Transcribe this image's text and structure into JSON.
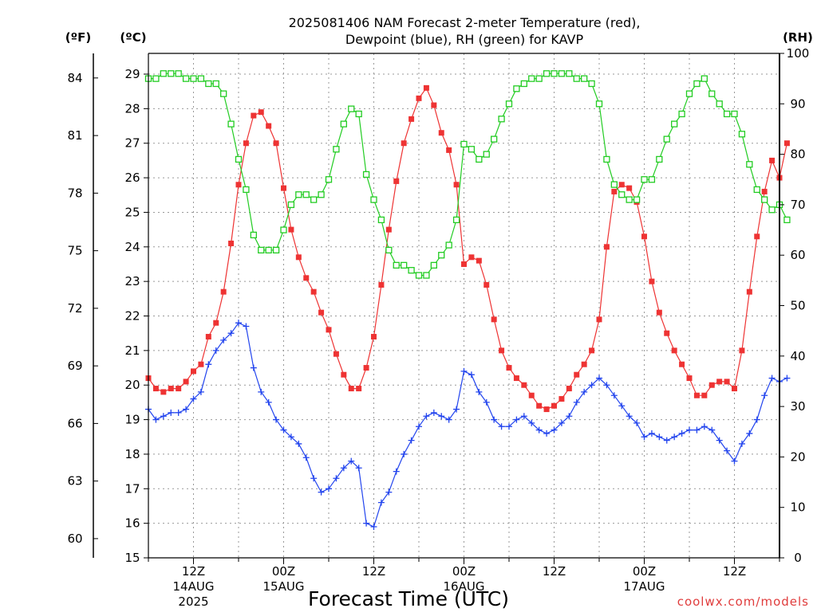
{
  "chart_data": {
    "type": "line",
    "title_line1": "2025081406 NAM Forecast 2-meter Temperature (red),",
    "title_line2": "Dewpoint (blue), RH (green) for KAVP",
    "xlabel": "Forecast Time (UTC)",
    "credit": "coolwx.com/models",
    "y_left_unit_f": "(ºF)",
    "y_left_unit_c": "(ºC)",
    "y_right_unit": "(RH)",
    "ylim_c": [
      15,
      29.6
    ],
    "ylim_rh": [
      0,
      100
    ],
    "xlim_hours": [
      6,
      90
    ],
    "grid": true,
    "f_ticks": [
      "60",
      "63",
      "66",
      "69",
      "72",
      "75",
      "78",
      "81",
      "84"
    ],
    "c_ticks": [
      "15",
      "16",
      "17",
      "18",
      "19",
      "20",
      "21",
      "22",
      "23",
      "24",
      "25",
      "26",
      "27",
      "28",
      "29"
    ],
    "rh_ticks": [
      "0",
      "10",
      "20",
      "30",
      "40",
      "50",
      "60",
      "70",
      "80",
      "90",
      "100"
    ],
    "x_ticks": [
      {
        "hour": 12,
        "label": "12Z",
        "date": "14AUG",
        "year": "2025"
      },
      {
        "hour": 24,
        "label": "00Z",
        "date": "15AUG",
        "year": ""
      },
      {
        "hour": 36,
        "label": "12Z",
        "date": "",
        "year": ""
      },
      {
        "hour": 48,
        "label": "00Z",
        "date": "16AUG",
        "year": ""
      },
      {
        "hour": 60,
        "label": "12Z",
        "date": "",
        "year": ""
      },
      {
        "hour": 72,
        "label": "00Z",
        "date": "17AUG",
        "year": ""
      },
      {
        "hour": 84,
        "label": "12Z",
        "date": "",
        "year": ""
      }
    ],
    "hours_start": 6,
    "hours_step": 1,
    "series": [
      {
        "name": "Temperature",
        "axis": "c",
        "color": "#ee3333",
        "marker": "filled-square",
        "values": [
          20.2,
          19.9,
          19.8,
          19.9,
          19.9,
          20.1,
          20.4,
          20.6,
          21.4,
          21.8,
          22.7,
          24.1,
          25.8,
          27.0,
          27.8,
          27.9,
          27.5,
          27.0,
          25.7,
          24.5,
          23.7,
          23.1,
          22.7,
          22.1,
          21.6,
          20.9,
          20.3,
          19.9,
          19.9,
          20.5,
          21.4,
          22.9,
          24.5,
          25.9,
          27.0,
          27.7,
          28.3,
          28.6,
          28.1,
          27.3,
          26.8,
          25.8,
          23.5,
          23.7,
          23.6,
          22.9,
          21.9,
          21.0,
          20.5,
          20.2,
          20.0,
          19.7,
          19.4,
          19.3,
          19.4,
          19.6,
          19.9,
          20.3,
          20.6,
          21.0,
          21.9,
          24.0,
          25.6,
          25.8,
          25.7,
          25.3,
          24.3,
          23.0,
          22.1,
          21.5,
          21.0,
          20.6,
          20.2,
          19.7,
          19.7,
          20.0,
          20.1,
          20.1,
          19.9,
          21.0,
          22.7,
          24.3,
          25.6,
          26.5,
          26.0,
          27.0
        ]
      },
      {
        "name": "Dewpoint",
        "axis": "c",
        "color": "#2244ee",
        "marker": "plus",
        "values": [
          19.3,
          19.0,
          19.1,
          19.2,
          19.2,
          19.3,
          19.6,
          19.8,
          20.6,
          21.0,
          21.3,
          21.5,
          21.8,
          21.7,
          20.5,
          19.8,
          19.5,
          19.0,
          18.7,
          18.5,
          18.3,
          17.9,
          17.3,
          16.9,
          17.0,
          17.3,
          17.6,
          17.8,
          17.6,
          16.0,
          15.9,
          16.6,
          16.9,
          17.5,
          18.0,
          18.4,
          18.8,
          19.1,
          19.2,
          19.1,
          19.0,
          19.3,
          20.4,
          20.3,
          19.8,
          19.5,
          19.0,
          18.8,
          18.8,
          19.0,
          19.1,
          18.9,
          18.7,
          18.6,
          18.7,
          18.9,
          19.1,
          19.5,
          19.8,
          20.0,
          20.2,
          20.0,
          19.7,
          19.4,
          19.1,
          18.9,
          18.5,
          18.6,
          18.5,
          18.4,
          18.5,
          18.6,
          18.7,
          18.7,
          18.8,
          18.7,
          18.4,
          18.1,
          17.8,
          18.3,
          18.6,
          19.0,
          19.7,
          20.2,
          20.1,
          20.2
        ]
      },
      {
        "name": "Relative Humidity",
        "axis": "rh",
        "color": "#22cc22",
        "marker": "open-square",
        "values": [
          95,
          95,
          96,
          96,
          96,
          95,
          95,
          95,
          94,
          94,
          92,
          86,
          79,
          73,
          64,
          61,
          61,
          61,
          65,
          70,
          72,
          72,
          71,
          72,
          75,
          81,
          86,
          89,
          88,
          76,
          71,
          67,
          61,
          58,
          58,
          57,
          56,
          56,
          58,
          60,
          62,
          67,
          82,
          81,
          79,
          80,
          83,
          87,
          90,
          93,
          94,
          95,
          95,
          96,
          96,
          96,
          96,
          95,
          95,
          94,
          90,
          79,
          74,
          72,
          71,
          71,
          75,
          75,
          79,
          83,
          86,
          88,
          92,
          94,
          95,
          92,
          90,
          88,
          88,
          84,
          78,
          73,
          71,
          69,
          70,
          67
        ]
      }
    ]
  }
}
